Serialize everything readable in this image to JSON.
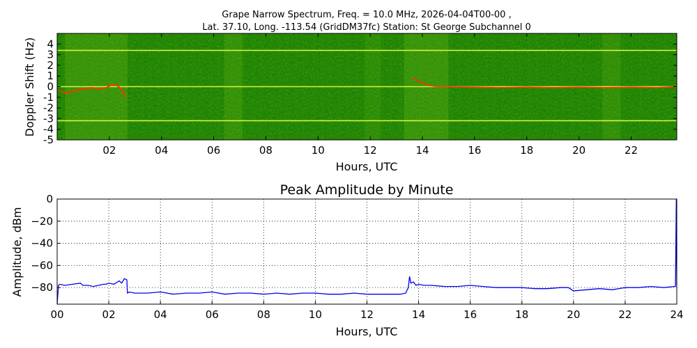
{
  "figure": {
    "title_line1": "Grape Narrow Spectrum, Freq. = 10.0 MHz, 2026-04-04T00-00 ,",
    "title_line2": "Lat.  37.10, Long. -113.54 (GridDM37fc) Station: St George Subchannel 0"
  },
  "chart_data": [
    {
      "type": "heatmap",
      "title": "",
      "xlabel": "Hours, UTC",
      "ylabel": "Doppler Shift (Hz)",
      "xlim": [
        0,
        23.75
      ],
      "ylim": [
        -5,
        5
      ],
      "x_ticks": [
        2,
        4,
        6,
        8,
        10,
        12,
        14,
        16,
        18,
        20,
        22
      ],
      "x_tick_labels": [
        "02",
        "04",
        "06",
        "08",
        "10",
        "12",
        "14",
        "16",
        "18",
        "20",
        "22"
      ],
      "y_ticks": [
        4,
        3,
        2,
        1,
        0,
        -1,
        -2,
        -3,
        -4,
        -5
      ],
      "y_tick_labels": [
        "4",
        "3",
        "2",
        "1",
        "0",
        "-1",
        "-2",
        "-3",
        "-4",
        "-5"
      ],
      "background_color": "#1a8000",
      "carrier_lines_hz": [
        3.4,
        0,
        -3.2
      ],
      "trace_color": "#ff3300",
      "signal_trace": {
        "x": [
          0.1,
          0.3,
          0.5,
          0.8,
          1.0,
          1.3,
          1.6,
          1.9,
          2.1,
          2.3,
          2.5,
          2.6,
          13.6,
          13.8,
          14.0,
          14.3,
          14.6,
          15.0,
          16.0,
          17.0,
          18.0,
          19.0,
          20.0,
          21.0,
          22.0,
          23.0,
          23.7
        ],
        "y": [
          -0.4,
          -0.6,
          -0.5,
          -0.3,
          -0.2,
          -0.1,
          -0.2,
          -0.1,
          0.2,
          0.1,
          -0.3,
          -1.0,
          0.8,
          0.6,
          0.3,
          0.1,
          0.0,
          0.0,
          -0.05,
          -0.1,
          -0.05,
          -0.1,
          -0.05,
          -0.1,
          -0.05,
          -0.1,
          0.0
        ]
      }
    },
    {
      "type": "line",
      "title": "Peak Amplitude by Minute",
      "xlabel": "Hours, UTC",
      "ylabel": "Amplitude, dBm",
      "xlim": [
        0,
        24
      ],
      "ylim": [
        -95,
        0
      ],
      "grid": true,
      "line_color": "#0000ee",
      "x_ticks": [
        0,
        2,
        4,
        6,
        8,
        10,
        12,
        14,
        16,
        18,
        20,
        22,
        24
      ],
      "x_tick_labels": [
        "00",
        "02",
        "04",
        "06",
        "08",
        "10",
        "12",
        "14",
        "16",
        "18",
        "20",
        "22",
        "24"
      ],
      "y_ticks": [
        0,
        -20,
        -40,
        -60,
        -80
      ],
      "y_tick_labels": [
        "0",
        "−20",
        "−40",
        "−60",
        "−80"
      ],
      "series": [
        {
          "x": [
            0.0,
            0.05,
            0.1,
            0.3,
            0.6,
            0.9,
            1.0,
            1.2,
            1.4,
            1.6,
            1.8,
            1.9,
            2.0,
            2.2,
            2.4,
            2.5,
            2.6,
            2.7,
            2.72,
            2.8,
            3.0,
            3.5,
            4.0,
            4.5,
            5.0,
            5.5,
            6.0,
            6.5,
            7.0,
            7.5,
            8.0,
            8.5,
            9.0,
            9.5,
            10.0,
            10.5,
            11.0,
            11.5,
            12.0,
            12.5,
            13.0,
            13.3,
            13.5,
            13.6,
            13.65,
            13.7,
            13.8,
            13.9,
            14.0,
            14.2,
            14.5,
            15.0,
            15.5,
            16.0,
            16.5,
            17.0,
            17.5,
            18.0,
            18.5,
            19.0,
            19.5,
            19.8,
            20.0,
            20.5,
            21.0,
            21.5,
            22.0,
            22.5,
            23.0,
            23.5,
            23.9,
            23.95,
            23.98,
            24.0
          ],
          "y": [
            -95,
            -78,
            -77,
            -78,
            -77,
            -76,
            -78,
            -78,
            -79,
            -78,
            -77,
            -77,
            -76,
            -77,
            -74,
            -76,
            -72,
            -73,
            -85,
            -84,
            -85,
            -85,
            -84,
            -86,
            -85,
            -85,
            -84,
            -86,
            -85,
            -85,
            -86,
            -85,
            -86,
            -85,
            -85,
            -86,
            -86,
            -85,
            -86,
            -86,
            -86,
            -86,
            -85,
            -80,
            -70,
            -76,
            -75,
            -78,
            -77,
            -78,
            -78,
            -79,
            -79,
            -78,
            -79,
            -80,
            -80,
            -80,
            -81,
            -81,
            -80,
            -80,
            -83,
            -82,
            -81,
            -82,
            -80,
            -80,
            -79,
            -80,
            -79,
            -79,
            0,
            -78
          ]
        }
      ]
    }
  ]
}
